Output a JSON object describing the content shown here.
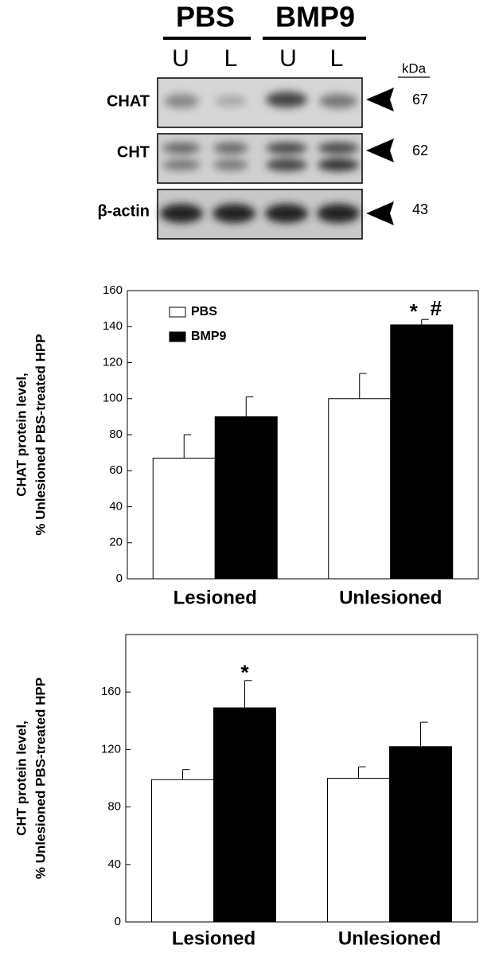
{
  "blot": {
    "groups": [
      "PBS",
      "BMP9"
    ],
    "lanes": [
      "U",
      "L",
      "U",
      "L"
    ],
    "unit": "kDa",
    "rows": [
      {
        "label": "CHAT",
        "kda": "67"
      },
      {
        "label": "CHT",
        "kda": "62"
      },
      {
        "label": "β-actin",
        "kda": "43"
      }
    ]
  },
  "chart_data": [
    {
      "type": "bar",
      "ylabel": [
        "CHAT protein level,",
        "% Unlesioned PBS-treated HPP"
      ],
      "categories": [
        "Lesioned",
        "Unlesioned"
      ],
      "series": [
        {
          "name": "PBS",
          "color": "#ffffff",
          "values": [
            67,
            100
          ],
          "errors": [
            13,
            14
          ]
        },
        {
          "name": "BMP9",
          "color": "#000000",
          "values": [
            90,
            141
          ],
          "errors": [
            11,
            3
          ]
        }
      ],
      "annotations": [
        "*",
        "#"
      ],
      "ylim": [
        0,
        160
      ],
      "yticks": [
        0,
        20,
        40,
        60,
        80,
        100,
        120,
        140,
        160
      ],
      "legend": "upper left"
    },
    {
      "type": "bar",
      "ylabel": [
        "CHT protein level,",
        "% Unlesioned PBS-treated HPP"
      ],
      "categories": [
        "Lesioned",
        "Unlesioned"
      ],
      "series": [
        {
          "name": "PBS",
          "color": "#ffffff",
          "values": [
            99,
            100
          ],
          "errors": [
            7,
            8
          ]
        },
        {
          "name": "BMP9",
          "color": "#000000",
          "values": [
            149,
            122
          ],
          "errors": [
            19,
            17
          ]
        }
      ],
      "annotations": [
        "*"
      ],
      "ylim": [
        0,
        200
      ],
      "yticks": [
        0,
        40,
        80,
        120,
        160
      ],
      "legend": false
    }
  ]
}
